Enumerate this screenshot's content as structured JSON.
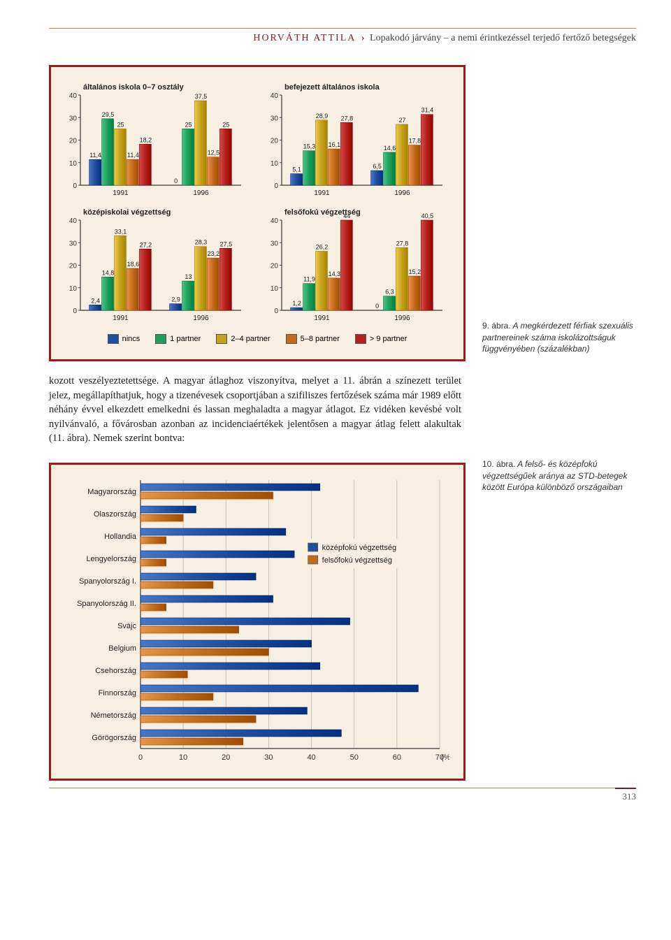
{
  "header": {
    "author": "HORVÁTH ATTILA",
    "sep": "›",
    "title": "Lopakodó járvány – a nemi érintkezéssel terjedő fertőző betegségek"
  },
  "palette": {
    "nincs": "#1f4f9e",
    "p1": "#1e9e5a",
    "p24": "#c5a21e",
    "p58": "#c46a1c",
    "p9": "#b22020",
    "bg": "#f6efe2",
    "border": "#9e1b1b",
    "grid": "#bdb49f",
    "axis": "#3a3a3a",
    "hbar_mid": "#1f4f9e",
    "hbar_high": "#c46a1c"
  },
  "panels": {
    "ymax": 40,
    "ytick_step": 10,
    "years": [
      "1991",
      "1996"
    ],
    "list": [
      {
        "title": "általános iskola 0–7 osztály",
        "groups": [
          {
            "values": [
              11.4,
              29.5,
              25,
              11.4,
              18.2
            ],
            "labels": [
              "11,4",
              "29,5",
              "25",
              "11,4",
              "18,2"
            ]
          },
          {
            "values": [
              0,
              25,
              37.5,
              12.5,
              25
            ],
            "labels": [
              "0",
              "25",
              "37,5",
              "12,5",
              "25"
            ]
          }
        ]
      },
      {
        "title": "befejezett általános iskola",
        "groups": [
          {
            "values": [
              5.1,
              15.3,
              28.9,
              16.1,
              27.8
            ],
            "labels": [
              "5,1",
              "15,3",
              "28,9",
              "16,1",
              "27,8"
            ]
          },
          {
            "values": [
              6.5,
              14.6,
              27,
              17.8,
              31.4
            ],
            "labels": [
              "6,5",
              "14,6",
              "27",
              "17,8",
              "31,4"
            ]
          }
        ]
      },
      {
        "title": "középiskolai végzettség",
        "groups": [
          {
            "values": [
              2.4,
              14.8,
              33.1,
              18.6,
              27.2
            ],
            "labels": [
              "2,4",
              "14,8",
              "33,1",
              "18,6",
              "27,2"
            ]
          },
          {
            "values": [
              2.9,
              13,
              28.3,
              23.2,
              27.5
            ],
            "labels": [
              "2,9",
              "13",
              "28,3",
              "23,2",
              "27,5"
            ]
          }
        ]
      },
      {
        "title": "felsőfokú végzettség",
        "title_extra": "44",
        "groups": [
          {
            "values": [
              1.2,
              11.9,
              26.2,
              14.3,
              44
            ],
            "labels": [
              "1,2",
              "11,9",
              "26,2",
              "14,3",
              "44"
            ]
          },
          {
            "values": [
              0,
              6.3,
              27.8,
              15.2,
              40.5
            ],
            "labels": [
              "0",
              "6,3",
              "27,8",
              "15,2",
              "40,5"
            ]
          }
        ]
      }
    ]
  },
  "legend": {
    "items": [
      {
        "key": "nincs",
        "label": "nincs"
      },
      {
        "key": "p1",
        "label": "1 partner"
      },
      {
        "key": "p24",
        "label": "2–4 partner"
      },
      {
        "key": "p58",
        "label": "5–8 partner"
      },
      {
        "key": "p9",
        "label": "> 9 partner"
      }
    ]
  },
  "caption9": {
    "lead": "9. ábra.",
    "text": " A megkérdezett férfiak szexuális partnereinek száma iskolázottságuk függvényében (százalékban)"
  },
  "body": "kozott veszélyeztetettsége. A magyar átlaghoz viszonyítva, melyet a 11. ábrán a színezett terület jelez, megállapíthatjuk, hogy a tizenévesek csoportjában a szifiliszes fertőzések száma már 1989 előtt néhány évvel elkezdett emelkedni és lassan meghaladta a magyar átlagot. Ez vidéken kevésbé volt nyilvánvaló, a fővárosban azonban az incidenciaértékek jelentősen a magyar átlag felett alakultak (11. ábra). Nemek szerint bontva:",
  "caption10": {
    "lead": "10. ábra.",
    "text": " A felső- és középfokú végzettségűek aránya az STD-betegek között Európa különböző országaiban"
  },
  "hbar": {
    "xmax": 70,
    "xtick_step": 10,
    "xunit": "(%)",
    "legend": [
      {
        "key": "hbar_mid",
        "label": "középfokú végzettség"
      },
      {
        "key": "hbar_high",
        "label": "felsőfokú végzettség"
      }
    ],
    "rows": [
      {
        "label": "Magyarország",
        "mid": 42,
        "high": 31
      },
      {
        "label": "Olaszország",
        "mid": 13,
        "high": 10
      },
      {
        "label": "Hollandia",
        "mid": 34,
        "high": 6
      },
      {
        "label": "Lengyelország",
        "mid": 36,
        "high": 6
      },
      {
        "label": "Spanyolország I.",
        "mid": 27,
        "high": 17
      },
      {
        "label": "Spanyolország II.",
        "mid": 31,
        "high": 6
      },
      {
        "label": "Svájc",
        "mid": 49,
        "high": 23
      },
      {
        "label": "Belgium",
        "mid": 40,
        "high": 30
      },
      {
        "label": "Csehország",
        "mid": 42,
        "high": 11
      },
      {
        "label": "Finnország",
        "mid": 65,
        "high": 17
      },
      {
        "label": "Németország",
        "mid": 39,
        "high": 27
      },
      {
        "label": "Görögország",
        "mid": 47,
        "high": 24
      }
    ]
  },
  "page_number": "313"
}
